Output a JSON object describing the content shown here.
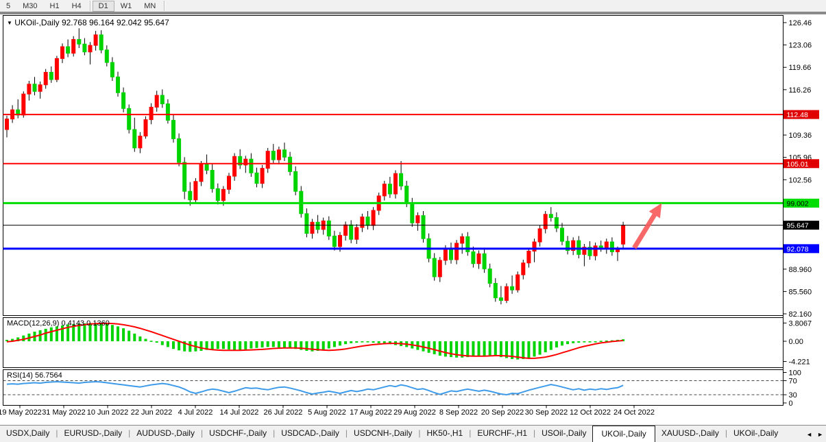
{
  "toolbar": {
    "timeframes": [
      {
        "label": "5",
        "active": false,
        "sep_after": false
      },
      {
        "label": "M30",
        "active": false,
        "sep_after": false
      },
      {
        "label": "H1",
        "active": false,
        "sep_after": false
      },
      {
        "label": "H4",
        "active": false,
        "sep_after": true
      },
      {
        "label": "D1",
        "active": true,
        "sep_after": false
      },
      {
        "label": "W1",
        "active": false,
        "sep_after": false
      },
      {
        "label": "MN",
        "active": false,
        "sep_after": true
      }
    ]
  },
  "chart": {
    "title_symbol": "UKOil-,Daily",
    "title_ohlc": "92.768 96.164 92.042 95.647",
    "macd_label": "MACD(12,26,9) 0.4143 0.1360",
    "rsi_label": "RSI(14) 56.7564"
  },
  "colors": {
    "up_candle": "#FF0000",
    "down_candle": "#00D400",
    "wick": "#000000",
    "macd_hist": "#00D400",
    "macd_signal": "#FF0000",
    "rsi_line": "#3E9BEA",
    "arrow": "#F75B5B",
    "panel_border": "#000000"
  },
  "chart_data": [
    {
      "type": "candlestick",
      "title": "UKOil-,Daily",
      "grid": false,
      "y_range": [
        82.16,
        126.46
      ],
      "y_ticks": [
        {
          "label": "126.46",
          "value": 126.46
        },
        {
          "label": "123.06",
          "value": 123.06
        },
        {
          "label": "119.66",
          "value": 119.66
        },
        {
          "label": "116.26",
          "value": 116.26
        },
        {
          "label": "109.36",
          "value": 109.36
        },
        {
          "label": "105.96",
          "value": 105.96
        },
        {
          "label": "102.56",
          "value": 102.56
        },
        {
          "label": "88.960",
          "value": 88.96
        },
        {
          "label": "85.560",
          "value": 85.56
        },
        {
          "label": "82.160",
          "value": 82.16
        }
      ],
      "x_ticks": [
        "19 May 2022",
        "31 May 2022",
        "10 Jun 2022",
        "22 Jun 2022",
        "4 Jul 2022",
        "14 Jul 2022",
        "26 Jul 2022",
        "5 Aug 2022",
        "17 Aug 2022",
        "29 Aug 2022",
        "8 Sep 2022",
        "20 Sep 2022",
        "30 Sep 2022",
        "12 Oct 2022",
        "24 Oct 2022"
      ],
      "horizontal_lines": [
        {
          "price": 112.48,
          "color": "#FF0000",
          "width": 2,
          "label": "112.48",
          "label_bg": "#E00000",
          "label_fg": "#FFFFFF"
        },
        {
          "price": 105.01,
          "color": "#FF0000",
          "width": 2,
          "label": "105.01",
          "label_bg": "#E00000",
          "label_fg": "#FFFFFF"
        },
        {
          "price": 99.002,
          "color": "#00DD00",
          "width": 3,
          "label": "99.002",
          "label_bg": "#00DD00",
          "label_fg": "#000000"
        },
        {
          "price": 95.647,
          "color": "#000000",
          "width": 1,
          "label": "95.647",
          "label_bg": "#000000",
          "label_fg": "#FFFFFF"
        },
        {
          "price": 92.078,
          "color": "#0000FF",
          "width": 3,
          "label": "92.078",
          "label_bg": "#0000FF",
          "label_fg": "#FFFFFF"
        }
      ],
      "annotation": {
        "type": "arrow-up",
        "from_price": 92.2,
        "to_price": 99.0,
        "color": "#F75B5B"
      },
      "candles": [
        [
          110.2,
          112.3,
          109.0,
          111.8
        ],
        [
          111.8,
          113.9,
          111.2,
          113.2
        ],
        [
          113.2,
          114.8,
          111.9,
          112.4
        ],
        [
          112.4,
          116.0,
          112.0,
          115.6
        ],
        [
          115.6,
          117.6,
          114.6,
          117.1
        ],
        [
          117.1,
          118.2,
          115.4,
          116.0
        ],
        [
          116.0,
          117.5,
          114.9,
          117.0
        ],
        [
          117.0,
          119.4,
          116.4,
          118.9
        ],
        [
          118.9,
          119.8,
          117.3,
          117.8
        ],
        [
          117.8,
          121.4,
          117.4,
          121.0
        ],
        [
          121.0,
          123.3,
          120.3,
          122.8
        ],
        [
          122.8,
          123.9,
          121.2,
          121.8
        ],
        [
          121.8,
          124.4,
          121.3,
          123.9
        ],
        [
          123.9,
          125.6,
          122.6,
          123.2
        ],
        [
          123.2,
          124.1,
          121.5,
          122.0
        ],
        [
          122.0,
          123.5,
          120.1,
          123.0
        ],
        [
          123.0,
          125.2,
          122.2,
          124.6
        ],
        [
          124.6,
          125.3,
          121.8,
          122.3
        ],
        [
          122.3,
          123.0,
          119.8,
          120.4
        ],
        [
          120.4,
          121.2,
          117.6,
          118.2
        ],
        [
          118.2,
          119.0,
          115.2,
          115.8
        ],
        [
          115.8,
          116.6,
          112.8,
          113.4
        ],
        [
          113.4,
          114.0,
          109.6,
          110.2
        ],
        [
          110.2,
          112.0,
          106.8,
          107.4
        ],
        [
          107.4,
          109.8,
          106.6,
          109.2
        ],
        [
          109.2,
          112.2,
          108.8,
          111.7
        ],
        [
          111.7,
          114.2,
          111.0,
          113.6
        ],
        [
          113.6,
          116.1,
          112.9,
          115.4
        ],
        [
          115.4,
          116.3,
          113.5,
          114.1
        ],
        [
          114.1,
          114.8,
          111.1,
          111.6
        ],
        [
          111.6,
          112.4,
          108.2,
          108.8
        ],
        [
          108.8,
          109.6,
          104.6,
          105.2
        ],
        [
          105.2,
          106.0,
          99.6,
          100.8
        ],
        [
          100.8,
          102.2,
          98.6,
          99.5
        ],
        [
          99.5,
          102.8,
          99.0,
          102.3
        ],
        [
          102.3,
          105.4,
          101.6,
          104.9
        ],
        [
          104.9,
          106.4,
          103.4,
          104.0
        ],
        [
          104.0,
          105.0,
          100.6,
          101.2
        ],
        [
          101.2,
          102.0,
          98.8,
          99.4
        ],
        [
          99.4,
          101.6,
          98.6,
          101.1
        ],
        [
          101.1,
          103.6,
          100.4,
          103.1
        ],
        [
          103.1,
          106.6,
          102.4,
          106.1
        ],
        [
          106.1,
          107.2,
          104.2,
          104.8
        ],
        [
          104.8,
          106.2,
          103.6,
          105.7
        ],
        [
          105.7,
          106.6,
          103.0,
          103.6
        ],
        [
          103.6,
          104.4,
          101.4,
          102.0
        ],
        [
          102.0,
          104.8,
          101.3,
          104.3
        ],
        [
          104.3,
          107.4,
          103.6,
          106.9
        ],
        [
          106.9,
          108.0,
          105.0,
          105.6
        ],
        [
          105.6,
          107.6,
          104.9,
          107.1
        ],
        [
          107.1,
          108.2,
          105.4,
          106.0
        ],
        [
          106.0,
          106.8,
          103.2,
          103.8
        ],
        [
          103.8,
          104.6,
          100.2,
          100.8
        ],
        [
          100.8,
          101.6,
          96.8,
          97.4
        ],
        [
          97.4,
          98.2,
          93.8,
          94.4
        ],
        [
          94.4,
          96.6,
          93.6,
          96.1
        ],
        [
          96.1,
          97.2,
          94.4,
          95.0
        ],
        [
          95.0,
          96.8,
          94.2,
          96.3
        ],
        [
          96.3,
          97.0,
          93.4,
          94.0
        ],
        [
          94.0,
          94.8,
          91.8,
          92.4
        ],
        [
          92.4,
          94.6,
          91.6,
          94.1
        ],
        [
          94.1,
          96.2,
          93.3,
          95.7
        ],
        [
          95.7,
          96.4,
          92.9,
          93.5
        ],
        [
          93.5,
          95.8,
          92.8,
          95.3
        ],
        [
          95.3,
          97.4,
          94.6,
          96.9
        ],
        [
          96.9,
          97.8,
          95.0,
          95.6
        ],
        [
          95.6,
          98.4,
          94.9,
          97.9
        ],
        [
          97.9,
          100.6,
          97.2,
          100.1
        ],
        [
          100.1,
          102.4,
          99.4,
          101.9
        ],
        [
          101.9,
          103.0,
          99.8,
          100.4
        ],
        [
          100.4,
          104.0,
          99.7,
          103.5
        ],
        [
          103.5,
          105.4,
          101.0,
          101.6
        ],
        [
          101.6,
          102.4,
          98.4,
          99.0
        ],
        [
          99.0,
          99.8,
          95.4,
          96.0
        ],
        [
          96.0,
          97.6,
          94.8,
          97.1
        ],
        [
          97.1,
          97.8,
          93.0,
          93.6
        ],
        [
          93.6,
          94.4,
          90.0,
          90.6
        ],
        [
          90.6,
          91.4,
          87.2,
          87.8
        ],
        [
          87.8,
          90.8,
          87.0,
          90.3
        ],
        [
          90.3,
          92.6,
          89.6,
          92.1
        ],
        [
          92.1,
          93.0,
          89.8,
          90.4
        ],
        [
          90.4,
          93.4,
          89.7,
          92.9
        ],
        [
          92.9,
          94.4,
          91.3,
          93.9
        ],
        [
          93.9,
          94.6,
          91.0,
          91.6
        ],
        [
          91.6,
          92.4,
          89.2,
          89.8
        ],
        [
          89.8,
          91.8,
          89.0,
          91.3
        ],
        [
          91.3,
          92.0,
          88.4,
          89.0
        ],
        [
          89.0,
          89.8,
          86.2,
          86.8
        ],
        [
          86.8,
          87.6,
          84.0,
          84.6
        ],
        [
          84.6,
          86.4,
          83.6,
          84.2
        ],
        [
          84.2,
          86.8,
          83.8,
          86.3
        ],
        [
          86.3,
          88.0,
          85.2,
          85.8
        ],
        [
          85.8,
          88.6,
          85.4,
          88.1
        ],
        [
          88.1,
          90.4,
          87.4,
          89.9
        ],
        [
          89.9,
          92.2,
          89.2,
          91.7
        ],
        [
          91.7,
          93.6,
          90.0,
          93.1
        ],
        [
          93.1,
          95.6,
          92.4,
          95.1
        ],
        [
          95.1,
          97.8,
          94.4,
          97.3
        ],
        [
          97.3,
          98.4,
          96.2,
          96.8
        ],
        [
          96.8,
          97.6,
          94.6,
          95.2
        ],
        [
          95.2,
          96.0,
          92.6,
          93.2
        ],
        [
          93.2,
          94.0,
          91.2,
          91.8
        ],
        [
          91.8,
          93.8,
          91.1,
          93.3
        ],
        [
          93.3,
          94.0,
          90.6,
          91.2
        ],
        [
          91.2,
          92.8,
          89.4,
          92.3
        ],
        [
          92.3,
          93.2,
          90.4,
          91.0
        ],
        [
          91.0,
          93.0,
          90.3,
          92.5
        ],
        [
          92.5,
          93.3,
          91.6,
          92.0
        ],
        [
          92.0,
          93.6,
          91.3,
          93.1
        ],
        [
          93.1,
          93.8,
          91.0,
          91.6
        ],
        [
          91.6,
          92.4,
          90.2,
          92.1
        ],
        [
          92.768,
          96.164,
          92.042,
          95.647
        ]
      ]
    },
    {
      "type": "bar",
      "title": "MACD(12,26,9)",
      "current_values": "0.4143 0.1360",
      "y_range": [
        -4.221,
        3.8067
      ],
      "y_ticks": [
        {
          "label": "3.8067",
          "value": 3.8067
        },
        {
          "label": "0.00",
          "value": 0
        },
        {
          "label": "-4.221",
          "value": -4.221
        }
      ],
      "histogram": [
        0.3,
        0.5,
        0.8,
        1.2,
        1.6,
        2.0,
        2.3,
        2.6,
        2.9,
        3.1,
        3.3,
        3.5,
        3.6,
        3.7,
        3.75,
        3.8,
        3.75,
        3.7,
        3.6,
        3.4,
        3.1,
        2.7,
        2.2,
        1.6,
        1.0,
        0.5,
        0.1,
        -0.3,
        -0.8,
        -1.2,
        -1.6,
        -1.9,
        -2.1,
        -2.2,
        -2.1,
        -2.0,
        -1.8,
        -1.7,
        -1.6,
        -1.6,
        -1.7,
        -1.8,
        -1.8,
        -1.7,
        -1.5,
        -1.4,
        -1.3,
        -1.2,
        -1.2,
        -1.3,
        -1.4,
        -1.5,
        -1.6,
        -1.8,
        -2.0,
        -2.1,
        -2.0,
        -1.8,
        -1.5,
        -1.2,
        -0.9,
        -0.6,
        -0.4,
        -0.3,
        -0.2,
        -0.2,
        -0.3,
        -0.4,
        -0.5,
        -0.6,
        -0.8,
        -1.0,
        -1.2,
        -1.5,
        -1.8,
        -2.1,
        -2.4,
        -2.7,
        -3.0,
        -3.2,
        -3.3,
        -3.4,
        -3.4,
        -3.3,
        -3.2,
        -3.1,
        -3.0,
        -3.0,
        -3.1,
        -3.3,
        -3.5,
        -3.7,
        -3.8,
        -3.7,
        -3.5,
        -3.2,
        -2.8,
        -2.3,
        -1.8,
        -1.3,
        -0.9,
        -0.6,
        -0.4,
        -0.3,
        -0.2,
        -0.1,
        0.0,
        0.1,
        0.15,
        0.2,
        0.3,
        0.4143
      ],
      "signal": [
        -0.1,
        0.0,
        0.2,
        0.4,
        0.7,
        1.0,
        1.3,
        1.7,
        2.0,
        2.3,
        2.6,
        2.9,
        3.1,
        3.3,
        3.45,
        3.6,
        3.68,
        3.72,
        3.73,
        3.7,
        3.6,
        3.45,
        3.25,
        3.0,
        2.7,
        2.35,
        2.0,
        1.6,
        1.2,
        0.8,
        0.4,
        0.0,
        -0.4,
        -0.8,
        -1.1,
        -1.4,
        -1.6,
        -1.75,
        -1.85,
        -1.9,
        -1.9,
        -1.9,
        -1.9,
        -1.85,
        -1.8,
        -1.75,
        -1.7,
        -1.6,
        -1.5,
        -1.45,
        -1.4,
        -1.4,
        -1.4,
        -1.45,
        -1.55,
        -1.65,
        -1.75,
        -1.85,
        -1.9,
        -1.85,
        -1.75,
        -1.6,
        -1.4,
        -1.2,
        -1.0,
        -0.85,
        -0.7,
        -0.6,
        -0.5,
        -0.45,
        -0.45,
        -0.5,
        -0.6,
        -0.75,
        -0.95,
        -1.2,
        -1.45,
        -1.75,
        -2.05,
        -2.35,
        -2.6,
        -2.8,
        -2.95,
        -3.05,
        -3.1,
        -3.1,
        -3.1,
        -3.05,
        -3.0,
        -3.0,
        -3.05,
        -3.15,
        -3.3,
        -3.45,
        -3.55,
        -3.55,
        -3.45,
        -3.3,
        -3.05,
        -2.75,
        -2.4,
        -2.05,
        -1.7,
        -1.35,
        -1.05,
        -0.8,
        -0.55,
        -0.35,
        -0.2,
        -0.05,
        0.05,
        0.136
      ]
    },
    {
      "type": "line",
      "title": "RSI(14)",
      "current_value": "56.7564",
      "levels": [
        70,
        30
      ],
      "y_range": [
        0,
        100
      ],
      "y_ticks": [
        {
          "label": "100",
          "value": 100
        },
        {
          "label": "70",
          "value": 70
        },
        {
          "label": "30",
          "value": 30
        },
        {
          "label": "0",
          "value": 0
        }
      ],
      "values": [
        60,
        61,
        60,
        62,
        63,
        64,
        63,
        65,
        66,
        67,
        66,
        65,
        64,
        63,
        65,
        66,
        67,
        66,
        64,
        62,
        60,
        58,
        56,
        54,
        52,
        55,
        58,
        60,
        62,
        60,
        56,
        52,
        46,
        38,
        34,
        38,
        43,
        46,
        44,
        40,
        36,
        40,
        45,
        50,
        48,
        49,
        46,
        44,
        48,
        51,
        52,
        49,
        45,
        41,
        36,
        32,
        35,
        37,
        40,
        37,
        34,
        38,
        42,
        39,
        42,
        46,
        44,
        48,
        52,
        56,
        53,
        58,
        55,
        50,
        45,
        47,
        42,
        36,
        31,
        36,
        41,
        39,
        43,
        46,
        43,
        40,
        43,
        40,
        36,
        32,
        30,
        34,
        33,
        38,
        43,
        47,
        51,
        55,
        59,
        56,
        52,
        48,
        44,
        47,
        43,
        46,
        44,
        47,
        45,
        48,
        50,
        56.76
      ]
    }
  ],
  "tabs": {
    "items": [
      "USDX,Daily",
      "EURUSD-,Daily",
      "AUDUSD-,Daily",
      "USDCHF-,Daily",
      "USDCAD-,Daily",
      "USDCNH-,Daily",
      "HK50-,H1",
      "EURCHF-,H1",
      "USOil-,Daily",
      "UKOil-,Daily",
      "XAUUSD-,Daily",
      "UKOil-,Daily"
    ],
    "active_index": 9,
    "scroll_left_icon": "◄",
    "scroll_right_icon": "►"
  }
}
